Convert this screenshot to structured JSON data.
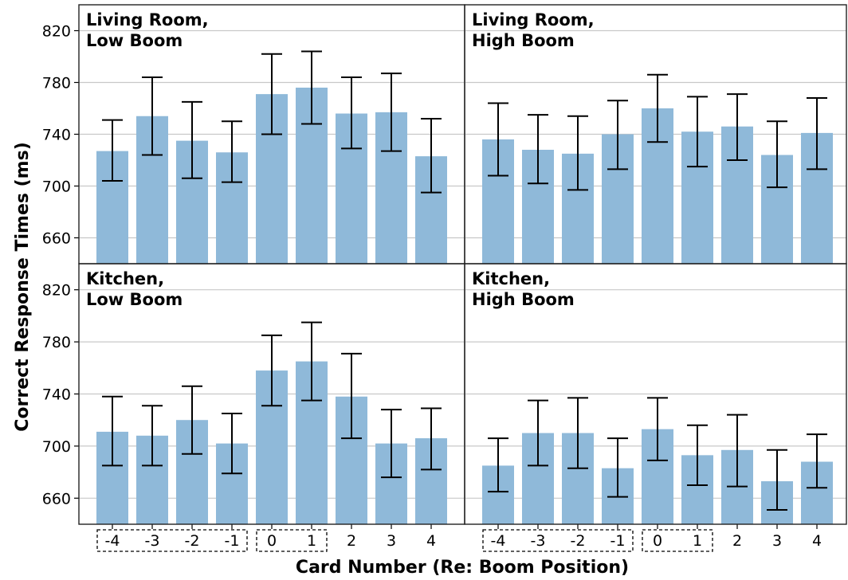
{
  "chart_data": {
    "type": "bar",
    "xlabel": "Card Number (Re: Boom Position)",
    "ylabel": "Correct Response Times (ms)",
    "categories": [
      "-4",
      "-3",
      "-2",
      "-1",
      "0",
      "1",
      "2",
      "3",
      "4"
    ],
    "ylim": [
      640,
      840
    ],
    "yticks": [
      660,
      700,
      740,
      780,
      820
    ],
    "grid": "horizontal",
    "bar_color": "#8fb9d9",
    "panels": [
      {
        "title_line1": "Living Room,",
        "title_line2": "Low Boom",
        "values": [
          727,
          754,
          735,
          726,
          771,
          776,
          756,
          757,
          723
        ],
        "error_low": [
          704,
          724,
          706,
          703,
          740,
          748,
          729,
          727,
          695
        ],
        "error_high": [
          751,
          784,
          765,
          750,
          802,
          804,
          784,
          787,
          752
        ]
      },
      {
        "title_line1": "Living Room,",
        "title_line2": "High Boom",
        "values": [
          736,
          728,
          725,
          740,
          760,
          742,
          746,
          724,
          741
        ],
        "error_low": [
          708,
          702,
          697,
          713,
          734,
          715,
          720,
          699,
          713
        ],
        "error_high": [
          764,
          755,
          754,
          766,
          786,
          769,
          771,
          750,
          768
        ]
      },
      {
        "title_line1": "Kitchen,",
        "title_line2": "Low Boom",
        "values": [
          711,
          708,
          720,
          702,
          758,
          765,
          738,
          702,
          706
        ],
        "error_low": [
          685,
          685,
          694,
          679,
          731,
          735,
          706,
          676,
          682
        ],
        "error_high": [
          738,
          731,
          746,
          725,
          785,
          795,
          771,
          728,
          729
        ]
      },
      {
        "title_line1": "Kitchen,",
        "title_line2": "High Boom",
        "values": [
          685,
          710,
          710,
          683,
          713,
          693,
          697,
          673,
          688
        ],
        "error_low": [
          665,
          685,
          683,
          661,
          689,
          670,
          669,
          651,
          668
        ],
        "error_high": [
          706,
          735,
          737,
          706,
          737,
          716,
          724,
          697,
          709
        ]
      }
    ],
    "highlight_groups": [
      [
        "-4",
        "-3",
        "-2",
        "-1"
      ],
      [
        "0",
        "1"
      ]
    ]
  }
}
